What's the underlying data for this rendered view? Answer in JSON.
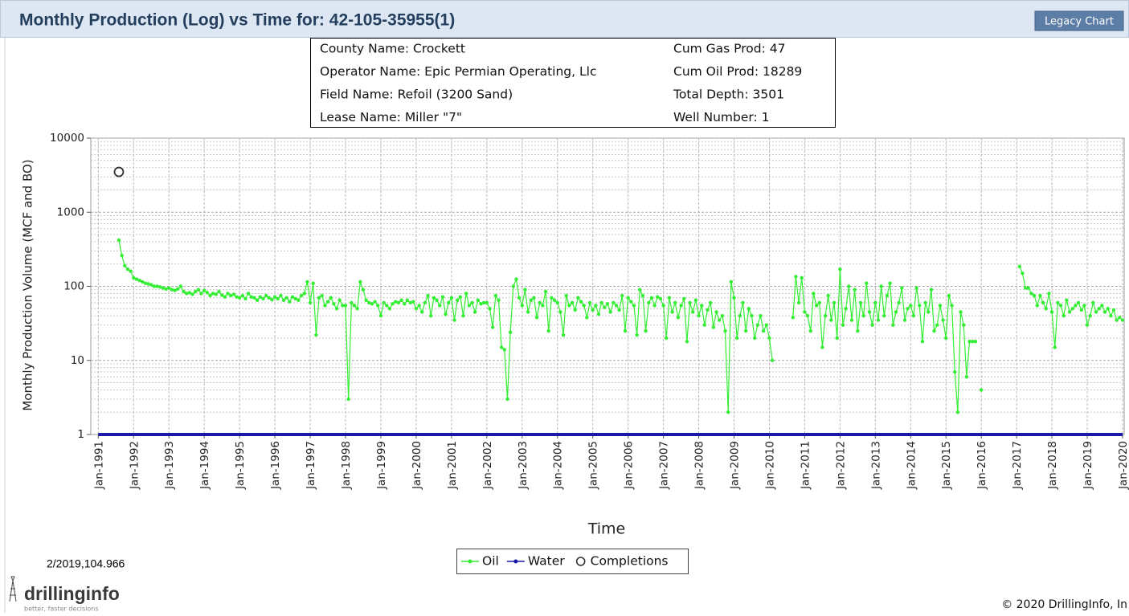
{
  "header": {
    "title": "Monthly Production (Log) vs Time for: 42-105-35955(1)",
    "button": "Legacy Chart"
  },
  "info": {
    "rows": [
      [
        "County Name:  Crockett",
        "Cum Gas Prod:  47"
      ],
      [
        "Operator Name:  Epic Permian Operating, Llc",
        "Cum Oil Prod:  18289"
      ],
      [
        "Field Name:  Refoil (3200 Sand)",
        "Total Depth:  3501"
      ],
      [
        "Lease Name:  Miller \"7\"",
        "Well Number:  1"
      ]
    ]
  },
  "readout": "2/2019,104.966",
  "footer": {
    "logo": "drillinginfo",
    "tagline": "better, faster decisions",
    "copyright": "© 2020 DrillingInfo, In"
  },
  "chart_data": {
    "type": "line",
    "x_label": "Time",
    "y_label": "Monthly Production Volume (MCF and BO)",
    "log_scale": true,
    "grid": true,
    "xlim": [
      "1990-11",
      "2020-01"
    ],
    "ylim": [
      1,
      10000
    ],
    "yticks": [
      1,
      10,
      100,
      1000,
      10000
    ],
    "xticks": [
      {
        "value": "1991-01",
        "label": "Jan-1991"
      },
      {
        "value": "1992-01",
        "label": "Jan-1992"
      },
      {
        "value": "1993-01",
        "label": "Jan-1993"
      },
      {
        "value": "1994-01",
        "label": "Jan-1994"
      },
      {
        "value": "1995-01",
        "label": "Jan-1995"
      },
      {
        "value": "1996-01",
        "label": "Jan-1996"
      },
      {
        "value": "1997-01",
        "label": "Jan-1997"
      },
      {
        "value": "1998-01",
        "label": "Jan-1998"
      },
      {
        "value": "1999-01",
        "label": "Jan-1999"
      },
      {
        "value": "2000-01",
        "label": "Jan-2000"
      },
      {
        "value": "2001-01",
        "label": "Jan-2001"
      },
      {
        "value": "2002-01",
        "label": "Jan-2002"
      },
      {
        "value": "2003-01",
        "label": "Jan-2003"
      },
      {
        "value": "2004-01",
        "label": "Jan-2004"
      },
      {
        "value": "2005-01",
        "label": "Jan-2005"
      },
      {
        "value": "2006-01",
        "label": "Jan-2006"
      },
      {
        "value": "2007-01",
        "label": "Jan-2007"
      },
      {
        "value": "2008-01",
        "label": "Jan-2008"
      },
      {
        "value": "2009-01",
        "label": "Jan-2009"
      },
      {
        "value": "2010-01",
        "label": "Jan-2010"
      },
      {
        "value": "2011-01",
        "label": "Jan-2011"
      },
      {
        "value": "2012-01",
        "label": "Jan-2012"
      },
      {
        "value": "2013-01",
        "label": "Jan-2013"
      },
      {
        "value": "2014-01",
        "label": "Jan-2014"
      },
      {
        "value": "2015-01",
        "label": "Jan-2015"
      },
      {
        "value": "2016-01",
        "label": "Jan-2016"
      },
      {
        "value": "2017-01",
        "label": "Jan-2017"
      },
      {
        "value": "2018-01",
        "label": "Jan-2018"
      },
      {
        "value": "2019-01",
        "label": "Jan-2019"
      },
      {
        "value": "2020-01",
        "label": "Jan-2020"
      }
    ],
    "series": [
      {
        "name": "Oil",
        "color": "#33ee33",
        "marker": "dot",
        "x": [
          "1991-08",
          "1991-09",
          "1991-10",
          "1991-11",
          "1991-12",
          "1992-01",
          "1992-02",
          "1992-03",
          "1992-04",
          "1992-05",
          "1992-06",
          "1992-07",
          "1992-08",
          "1992-09",
          "1992-10",
          "1992-11",
          "1992-12",
          "1993-01",
          "1993-02",
          "1993-03",
          "1993-04",
          "1993-05",
          "1993-06",
          "1993-07",
          "1993-08",
          "1993-09",
          "1993-10",
          "1993-11",
          "1993-12",
          "1994-01",
          "1994-02",
          "1994-03",
          "1994-04",
          "1994-05",
          "1994-06",
          "1994-07",
          "1994-08",
          "1994-09",
          "1994-10",
          "1994-11",
          "1994-12",
          "1995-01",
          "1995-02",
          "1995-03",
          "1995-04",
          "1995-05",
          "1995-06",
          "1995-07",
          "1995-08",
          "1995-09",
          "1995-10",
          "1995-11",
          "1995-12",
          "1996-01",
          "1996-02",
          "1996-03",
          "1996-04",
          "1996-05",
          "1996-06",
          "1996-07",
          "1996-08",
          "1996-09",
          "1996-10",
          "1996-11",
          "1996-12",
          "1997-01",
          "1997-02",
          "1997-03",
          "1997-04",
          "1997-05",
          "1997-06",
          "1997-07",
          "1997-08",
          "1997-09",
          "1997-10",
          "1997-11",
          "1997-12",
          "1998-01",
          "1998-02",
          "1998-03",
          "1998-04",
          "1998-05",
          "1998-06",
          "1998-07",
          "1998-08",
          "1998-09",
          "1998-10",
          "1998-11",
          "1998-12",
          "1999-01",
          "1999-02",
          "1999-03",
          "1999-04",
          "1999-05",
          "1999-06",
          "1999-07",
          "1999-08",
          "1999-09",
          "1999-10",
          "1999-11",
          "1999-12",
          "2000-01",
          "2000-02",
          "2000-03",
          "2000-04",
          "2000-05",
          "2000-06",
          "2000-07",
          "2000-08",
          "2000-09",
          "2000-10",
          "2000-11",
          "2000-12",
          "2001-01",
          "2001-02",
          "2001-03",
          "2001-04",
          "2001-05",
          "2001-06",
          "2001-07",
          "2001-08",
          "2001-09",
          "2001-10",
          "2001-11",
          "2001-12",
          "2002-01",
          "2002-02",
          "2002-03",
          "2002-04",
          "2002-05",
          "2002-06",
          "2002-07",
          "2002-08",
          "2002-09",
          "2002-10",
          "2002-11",
          "2002-12",
          "2003-01",
          "2003-02",
          "2003-03",
          "2003-04",
          "2003-05",
          "2003-06",
          "2003-07",
          "2003-08",
          "2003-09",
          "2003-10",
          "2003-11",
          "2003-12",
          "2004-01",
          "2004-02",
          "2004-03",
          "2004-04",
          "2004-05",
          "2004-06",
          "2004-07",
          "2004-08",
          "2004-09",
          "2004-10",
          "2004-11",
          "2004-12",
          "2005-01",
          "2005-02",
          "2005-03",
          "2005-04",
          "2005-05",
          "2005-06",
          "2005-07",
          "2005-08",
          "2005-09",
          "2005-10",
          "2005-11",
          "2005-12",
          "2006-01",
          "2006-02",
          "2006-03",
          "2006-04",
          "2006-05",
          "2006-06",
          "2006-07",
          "2006-08",
          "2006-09",
          "2006-10",
          "2006-11",
          "2006-12",
          "2007-01",
          "2007-02",
          "2007-03",
          "2007-04",
          "2007-05",
          "2007-06",
          "2007-07",
          "2007-08",
          "2007-09",
          "2007-10",
          "2007-11",
          "2007-12",
          "2008-01",
          "2008-02",
          "2008-03",
          "2008-04",
          "2008-05",
          "2008-06",
          "2008-07",
          "2008-08",
          "2008-09",
          "2008-10",
          "2008-11",
          "2008-12",
          "2009-01",
          "2009-02",
          "2009-03",
          "2009-04",
          "2009-05",
          "2009-06",
          "2009-07",
          "2009-08",
          "2009-09",
          "2009-10",
          "2009-11",
          "2009-12",
          "2010-01",
          "2010-02",
          "2010-03",
          "2010-04",
          "2010-05",
          "2010-06",
          "2010-07",
          "2010-08",
          "2010-09",
          "2010-10",
          "2010-11",
          "2010-12",
          "2011-01",
          "2011-02",
          "2011-03",
          "2011-04",
          "2011-05",
          "2011-06",
          "2011-07",
          "2011-08",
          "2011-09",
          "2011-10",
          "2011-11",
          "2011-12",
          "2012-01",
          "2012-02",
          "2012-03",
          "2012-04",
          "2012-05",
          "2012-06",
          "2012-07",
          "2012-08",
          "2012-09",
          "2012-10",
          "2012-11",
          "2012-12",
          "2013-01",
          "2013-02",
          "2013-03",
          "2013-04",
          "2013-05",
          "2013-06",
          "2013-07",
          "2013-08",
          "2013-09",
          "2013-10",
          "2013-11",
          "2013-12",
          "2014-01",
          "2014-02",
          "2014-03",
          "2014-04",
          "2014-05",
          "2014-06",
          "2014-07",
          "2014-08",
          "2014-09",
          "2014-10",
          "2014-11",
          "2014-12",
          "2015-01",
          "2015-02",
          "2015-03",
          "2015-04",
          "2015-05",
          "2015-06",
          "2015-07",
          "2015-08",
          "2015-09",
          "2015-10",
          "2015-11",
          "2015-12",
          "2016-01",
          "2016-02",
          "2016-03",
          "2016-04",
          "2016-05",
          "2016-06",
          "2016-07",
          "2016-08",
          "2016-09",
          "2016-10",
          "2016-11",
          "2016-12",
          "2017-01",
          "2017-02",
          "2017-03",
          "2017-04",
          "2017-05",
          "2017-06",
          "2017-07",
          "2017-08",
          "2017-09",
          "2017-10",
          "2017-11",
          "2017-12",
          "2018-01",
          "2018-02",
          "2018-03",
          "2018-04",
          "2018-05",
          "2018-06",
          "2018-07",
          "2018-08",
          "2018-09",
          "2018-10",
          "2018-11",
          "2018-12",
          "2019-01",
          "2019-02",
          "2019-03",
          "2019-04",
          "2019-05",
          "2019-06",
          "2019-07",
          "2019-08",
          "2019-09",
          "2019-10",
          "2019-11",
          "2019-12",
          "2020-01"
        ],
        "values": [
          420,
          260,
          190,
          170,
          160,
          130,
          125,
          120,
          115,
          110,
          108,
          105,
          100,
          100,
          98,
          95,
          92,
          95,
          90,
          88,
          92,
          100,
          85,
          80,
          82,
          78,
          85,
          90,
          80,
          88,
          82,
          75,
          80,
          78,
          85,
          76,
          72,
          80,
          75,
          78,
          72,
          70,
          75,
          68,
          80,
          72,
          70,
          65,
          72,
          68,
          75,
          70,
          66,
          72,
          68,
          75,
          65,
          70,
          62,
          72,
          68,
          65,
          75,
          80,
          115,
          60,
          110,
          22,
          70,
          75,
          55,
          62,
          70,
          58,
          50,
          65,
          55,
          55,
          3,
          60,
          55,
          50,
          115,
          90,
          65,
          60,
          58,
          62,
          55,
          40,
          60,
          55,
          50,
          58,
          62,
          60,
          65,
          58,
          65,
          60,
          62,
          50,
          55,
          45,
          60,
          75,
          40,
          70,
          65,
          55,
          72,
          42,
          60,
          70,
          35,
          65,
          72,
          40,
          80,
          55,
          60,
          45,
          65,
          58,
          60,
          60,
          50,
          28,
          75,
          65,
          15,
          14,
          3,
          24,
          100,
          125,
          70,
          55,
          90,
          45,
          65,
          70,
          38,
          60,
          55,
          85,
          25,
          70,
          65,
          60,
          45,
          22,
          75,
          55,
          60,
          48,
          70,
          62,
          55,
          38,
          60,
          48,
          55,
          42,
          60,
          52,
          58,
          45,
          60,
          55,
          48,
          75,
          25,
          70,
          62,
          55,
          22,
          90,
          75,
          25,
          60,
          70,
          55,
          72,
          68,
          55,
          20,
          70,
          45,
          60,
          38,
          55,
          68,
          18,
          60,
          45,
          65,
          40,
          55,
          30,
          48,
          60,
          28,
          45,
          35,
          40,
          25,
          2,
          115,
          70,
          20,
          40,
          60,
          25,
          50,
          40,
          20,
          30,
          40,
          25,
          30,
          20,
          10,
          null,
          null,
          null,
          null,
          null,
          null,
          38,
          135,
          60,
          130,
          45,
          40,
          25,
          80,
          55,
          60,
          15,
          40,
          75,
          35,
          60,
          20,
          170,
          30,
          50,
          100,
          35,
          90,
          25,
          60,
          40,
          110,
          45,
          30,
          60,
          35,
          100,
          40,
          75,
          110,
          30,
          45,
          60,
          95,
          35,
          50,
          55,
          40,
          95,
          55,
          18,
          60,
          45,
          90,
          25,
          30,
          55,
          35,
          20,
          75,
          55,
          7,
          2,
          45,
          30,
          6,
          18,
          18,
          18,
          null,
          4,
          null,
          null,
          null,
          null,
          null,
          null,
          null,
          null,
          null,
          null,
          null,
          null,
          185,
          150,
          95,
          95,
          80,
          75,
          55,
          75,
          60,
          50,
          80,
          45,
          15,
          60,
          55,
          40,
          65,
          45,
          50,
          55,
          60,
          48,
          55,
          30,
          40,
          60,
          45,
          50,
          55,
          45,
          50,
          40,
          48,
          35,
          38,
          35
        ]
      },
      {
        "name": "Water",
        "color": "#1a1aa6",
        "marker": "dot",
        "x": [
          "1991-01",
          "2020-01"
        ],
        "values": [
          1,
          1
        ]
      },
      {
        "name": "Completions",
        "color": "#333333",
        "marker": "circle",
        "x": [
          "1991-08"
        ],
        "values": [
          3500
        ]
      }
    ]
  }
}
